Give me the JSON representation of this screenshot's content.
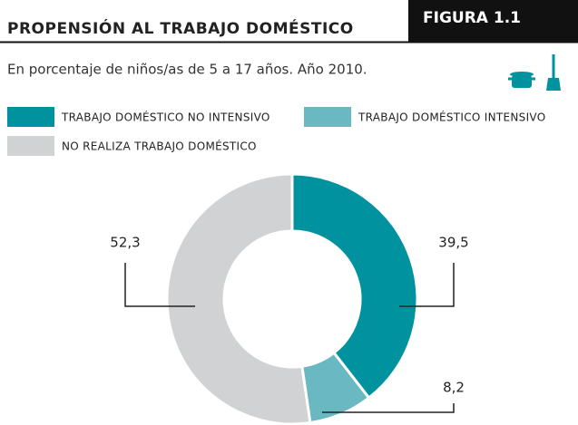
{
  "chart_data": {
    "type": "donut",
    "title": "PROPENSIÓN AL TRABAJO DOMÉSTICO",
    "badge": "FIGURA 1.1",
    "subtitle": "En porcentaje de niños/as de 5 a 17 años. Año 2010.",
    "categories": [
      "TRABAJO DOMÉSTICO NO INTENSIVO",
      "TRABAJO DOMÉSTICO INTENSIVO",
      "NO REALIZA TRABAJO DOMÉSTICO"
    ],
    "values": [
      39.5,
      8.2,
      52.3
    ],
    "value_labels": [
      "39,5",
      "8,2",
      "52,3"
    ],
    "colors": [
      "#00939f",
      "#6ab8c2",
      "#d1d2d4"
    ]
  }
}
